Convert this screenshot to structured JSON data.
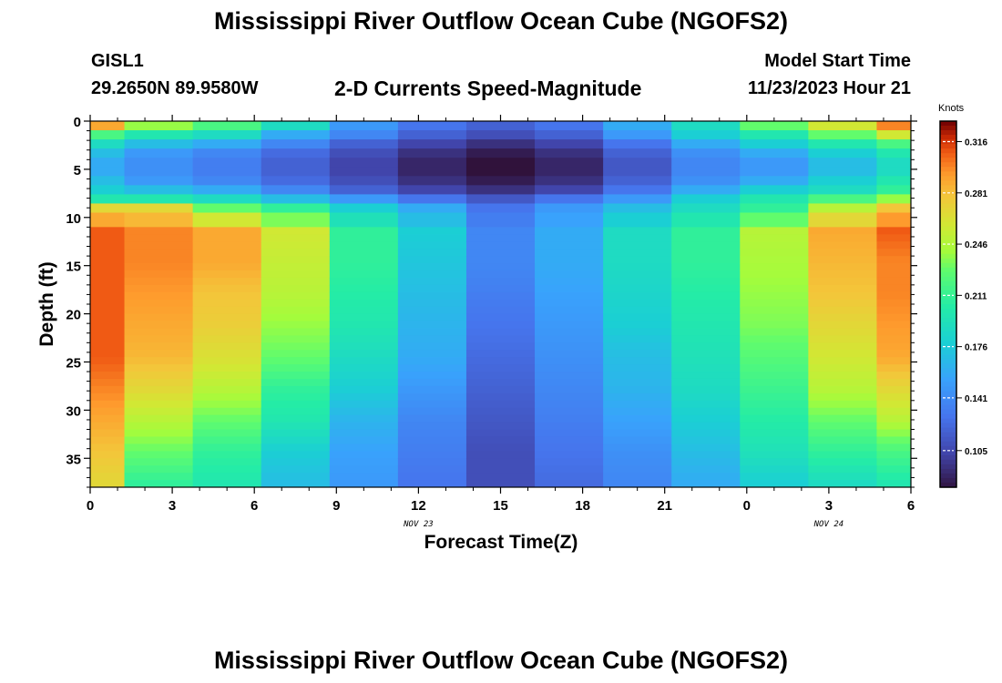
{
  "page": {
    "title": "Mississippi River Outflow Ocean Cube (NGOFS2)",
    "title_repeat": "Mississippi River Outflow Ocean Cube (NGOFS2)",
    "station": "GISL1",
    "coords": "29.2650N  89.9580W",
    "subtitle": "2-D Currents Speed-Magnitude",
    "model_start_label": "Model Start Time",
    "model_start_value": "11/23/2023 Hour 21"
  },
  "chart_data": {
    "type": "heatmap",
    "xlabel": "Forecast Time(Z)",
    "ylabel": "Depth (ft)",
    "x_ticks": [
      "0",
      "3",
      "6",
      "9",
      "12",
      "15",
      "18",
      "21",
      "0",
      "3",
      "6"
    ],
    "date_labels": [
      {
        "text": "NOV 23",
        "at_tick": 4
      },
      {
        "text": "NOV 24",
        "at_tick": 9
      }
    ],
    "y_ticks": [
      0,
      5,
      10,
      15,
      20,
      25,
      30,
      35
    ],
    "ylim": [
      0,
      38
    ],
    "y_reversed": true,
    "colorbar": {
      "label": "Knots",
      "ticks": [
        "0.316",
        "0.281",
        "0.246",
        "0.211",
        "0.176",
        "0.141",
        "0.105"
      ],
      "range": [
        0.08,
        0.33
      ],
      "colormap": "turbo"
    },
    "columns": [
      {
        "x_start": 0.0,
        "x_end": 1.25,
        "surface": [
          0.29,
          0.22,
          0.19,
          0.17,
          0.16,
          0.16,
          0.17,
          0.18,
          0.2,
          0.27
        ],
        "deep": [
          0.31,
          0.31,
          0.31,
          0.31,
          0.31,
          0.3,
          0.29,
          0.28,
          0.27
        ]
      },
      {
        "x_start": 1.25,
        "x_end": 3.75,
        "surface": [
          0.24,
          0.2,
          0.17,
          0.15,
          0.145,
          0.145,
          0.15,
          0.17,
          0.2,
          0.27
        ],
        "deep": [
          0.3,
          0.3,
          0.295,
          0.29,
          0.285,
          0.27,
          0.25,
          0.23,
          0.21
        ]
      },
      {
        "x_start": 3.75,
        "x_end": 6.25,
        "surface": [
          0.22,
          0.19,
          0.16,
          0.14,
          0.135,
          0.135,
          0.14,
          0.16,
          0.19,
          0.23
        ],
        "deep": [
          0.29,
          0.29,
          0.28,
          0.275,
          0.265,
          0.25,
          0.23,
          0.21,
          0.2
        ]
      },
      {
        "x_start": 6.25,
        "x_end": 8.75,
        "surface": [
          0.19,
          0.16,
          0.14,
          0.125,
          0.12,
          0.12,
          0.125,
          0.14,
          0.17,
          0.21
        ],
        "deep": [
          0.26,
          0.255,
          0.25,
          0.24,
          0.23,
          0.21,
          0.2,
          0.18,
          0.17
        ]
      },
      {
        "x_start": 8.75,
        "x_end": 11.25,
        "surface": [
          0.15,
          0.14,
          0.12,
          0.11,
          0.105,
          0.105,
          0.11,
          0.12,
          0.15,
          0.18
        ],
        "deep": [
          0.21,
          0.21,
          0.205,
          0.2,
          0.19,
          0.18,
          0.165,
          0.155,
          0.15
        ]
      },
      {
        "x_start": 11.25,
        "x_end": 13.75,
        "surface": [
          0.13,
          0.12,
          0.105,
          0.095,
          0.09,
          0.09,
          0.095,
          0.105,
          0.13,
          0.16
        ],
        "deep": [
          0.18,
          0.175,
          0.17,
          0.165,
          0.16,
          0.15,
          0.14,
          0.135,
          0.13
        ]
      },
      {
        "x_start": 13.75,
        "x_end": 16.25,
        "surface": [
          0.12,
          0.11,
          0.095,
          0.085,
          0.08,
          0.08,
          0.085,
          0.095,
          0.115,
          0.13
        ],
        "deep": [
          0.14,
          0.14,
          0.135,
          0.13,
          0.125,
          0.12,
          0.115,
          0.11,
          0.11
        ]
      },
      {
        "x_start": 16.25,
        "x_end": 18.75,
        "surface": [
          0.13,
          0.12,
          0.105,
          0.095,
          0.09,
          0.09,
          0.095,
          0.105,
          0.13,
          0.15
        ],
        "deep": [
          0.16,
          0.16,
          0.155,
          0.15,
          0.145,
          0.14,
          0.135,
          0.13,
          0.125
        ]
      },
      {
        "x_start": 18.75,
        "x_end": 21.25,
        "surface": [
          0.16,
          0.15,
          0.13,
          0.12,
          0.115,
          0.115,
          0.12,
          0.13,
          0.15,
          0.17
        ],
        "deep": [
          0.19,
          0.19,
          0.185,
          0.18,
          0.17,
          0.165,
          0.155,
          0.145,
          0.14
        ]
      },
      {
        "x_start": 21.25,
        "x_end": 23.75,
        "surface": [
          0.19,
          0.18,
          0.16,
          0.145,
          0.14,
          0.14,
          0.145,
          0.16,
          0.18,
          0.19
        ],
        "deep": [
          0.21,
          0.21,
          0.205,
          0.2,
          0.195,
          0.19,
          0.18,
          0.17,
          0.16
        ]
      },
      {
        "x_start": 23.75,
        "x_end": 26.25,
        "surface": [
          0.23,
          0.2,
          0.18,
          0.16,
          0.15,
          0.15,
          0.16,
          0.18,
          0.2,
          0.21
        ],
        "deep": [
          0.25,
          0.245,
          0.24,
          0.235,
          0.225,
          0.215,
          0.205,
          0.195,
          0.18
        ]
      },
      {
        "x_start": 26.25,
        "x_end": 28.75,
        "surface": [
          0.26,
          0.23,
          0.2,
          0.18,
          0.17,
          0.17,
          0.18,
          0.19,
          0.22,
          0.25
        ],
        "deep": [
          0.29,
          0.285,
          0.28,
          0.27,
          0.26,
          0.25,
          0.23,
          0.21,
          0.19
        ]
      },
      {
        "x_start": 28.75,
        "x_end": 30.0,
        "surface": [
          0.3,
          0.26,
          0.22,
          0.2,
          0.19,
          0.19,
          0.2,
          0.21,
          0.24,
          0.28
        ],
        "deep": [
          0.31,
          0.3,
          0.3,
          0.295,
          0.29,
          0.27,
          0.25,
          0.22,
          0.2
        ]
      }
    ],
    "surface_layer_depth_ft": [
      0,
      9.5
    ],
    "deep_layer_depth_ft": [
      11,
      38
    ]
  }
}
